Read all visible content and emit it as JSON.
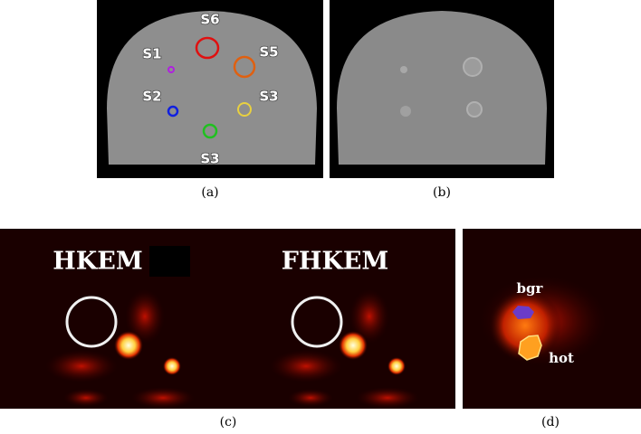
{
  "panels": {
    "a": {
      "labels": [
        "S6",
        "S1",
        "S5",
        "S2",
        "S3",
        "S3"
      ],
      "caption": "(a)"
    },
    "b": {
      "caption": "(b)"
    },
    "c": {
      "titles": [
        "HKEM",
        "FHKEM"
      ],
      "caption": "(c)"
    },
    "d": {
      "labels": [
        "bgr",
        "hot"
      ],
      "caption": "(d)"
    }
  }
}
